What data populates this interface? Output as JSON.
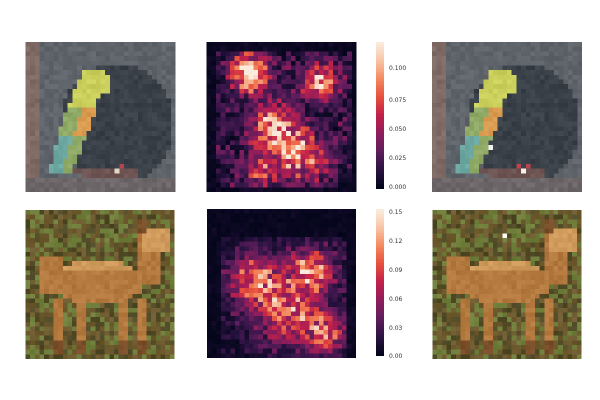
{
  "colormap_stops": [
    "#03051a",
    "#2b1342",
    "#5e1d5b",
    "#8f1d5c",
    "#c1204b",
    "#e54e3c",
    "#f4875c",
    "#f7c3a3",
    "#faebdd"
  ],
  "rows": [
    {
      "name": "bird",
      "original": {
        "palette": {
          "background": "#5f646a",
          "dark_blob": "#3a4048",
          "left_border": "#806a66",
          "branch": "#6e5554",
          "bird_yellow": "#c9cf5a",
          "bird_green": "#8fa966",
          "bird_orange": "#d79a4f",
          "bird_teal": "#6ba6a1",
          "highlight": "#e6d9c9",
          "red_spot": "#b9444f"
        }
      },
      "heatmap": {
        "grid": 32,
        "colorbar_ticks": [
          "0.100",
          "0.075",
          "0.050",
          "0.025",
          "0.000"
        ],
        "vmax": 0.12
      },
      "adversarial": {
        "palette": {
          "background": "#5f646a",
          "dark_blob": "#3a4048",
          "left_border": "#806a66",
          "branch": "#6e5554",
          "bird_yellow": "#c9cf5a",
          "bird_green": "#8fa966",
          "bird_orange": "#d79a4f",
          "bird_teal": "#6ba6a1",
          "highlight": "#e6d9c9",
          "red_spot": "#b9444f"
        },
        "perturbation": "white-pixel"
      }
    },
    {
      "name": "deer",
      "original": {
        "palette": {
          "background": "#6e5a2f",
          "grass_dark": "#4f4a25",
          "grass_green": "#6f7d3a",
          "deer_body": "#b4793e",
          "deer_light": "#cf9a5c",
          "deer_shadow": "#7a4e28",
          "highlight": "#e9dcc6"
        }
      },
      "heatmap": {
        "grid": 32,
        "colorbar_ticks": [
          "0.15",
          "0.12",
          "0.09",
          "0.06",
          "0.03",
          "0.00"
        ],
        "vmax": 0.155
      },
      "adversarial": {
        "palette": {
          "background": "#6e5a2f",
          "grass_dark": "#4f4a25",
          "grass_green": "#6f7d3a",
          "deer_body": "#b4793e",
          "deer_light": "#cf9a5c",
          "deer_shadow": "#7a4e28",
          "highlight": "#e9dcc6"
        },
        "perturbation": "white-pixel"
      }
    }
  ]
}
